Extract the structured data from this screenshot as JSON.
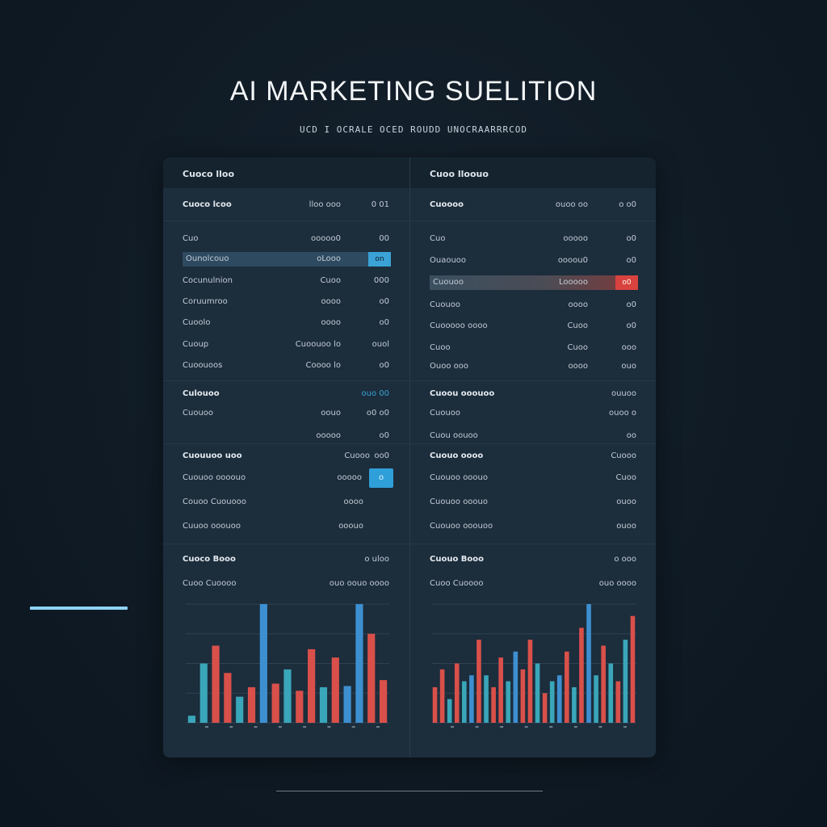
{
  "page": {
    "title": "AI MARKETING SUELITION",
    "subtitle": "UCD I OCRALE OCED ROUDD UNOCRAARRRCOD"
  },
  "left_panel": {
    "header": "Cuoco lloo",
    "rows": [
      {
        "label": "Cuoco lcoo",
        "value": "lloo  ooo",
        "small": "0  01"
      },
      {
        "label": "Cuo",
        "value": "ooooo0",
        "small": "00"
      },
      {
        "label": "Ounolcouo",
        "value": "oLooo",
        "small": "on",
        "highlight": "blue"
      },
      {
        "label": "Cocunulnion",
        "value": "Cuoo",
        "small": "000"
      },
      {
        "label": "Coruumroo",
        "value": "oooo",
        "small": "o0"
      },
      {
        "label": "Cuoolo",
        "value": "oooo",
        "small": "o0"
      },
      {
        "label": "Cuoup",
        "value": "Cuoouoo lo",
        "small": "ouol"
      },
      {
        "label": "Cuoouoos",
        "value": "Coooo lo",
        "small": "o0"
      }
    ],
    "section2": {
      "label": "Culouoo",
      "value": "ouo 00",
      "small": ""
    },
    "rows2": [
      {
        "label": "Cuouoo",
        "value": "oouo",
        "small": "o0 o0"
      },
      {
        "label": "",
        "value": "ooooo",
        "small": "o0"
      }
    ],
    "section3": {
      "label": "Cuouuoo uoo",
      "value": "Cuooo",
      "small": "oo0"
    },
    "rows3": [
      {
        "label": "Cuouoo oooouo",
        "value": "ooooo",
        "small": ""
      },
      {
        "label": "Couoo Cuouooo",
        "value": "oooo",
        "small": ""
      },
      {
        "label": "Cuuoo ooouoo",
        "value": "ooouo",
        "small": ""
      }
    ],
    "chart_header": {
      "label": "Cuoco Booo",
      "value": "o  uloo"
    },
    "chart_legend": {
      "label": "Cuoo  Cuoooo",
      "value": "ouo  oouo  oooo"
    },
    "button_label": "o"
  },
  "right_panel": {
    "header": "Cuoo lloouo",
    "rows": [
      {
        "label": "Cuoooo",
        "value": "ouoo  oo",
        "small": "o  o0"
      },
      {
        "label": "Cuo",
        "value": "ooooo",
        "small": "o0"
      },
      {
        "label": "Ouaouoo",
        "value": "oooou0",
        "small": "o0"
      },
      {
        "label": "Cuouoo",
        "value": "Looooo",
        "small": "o0",
        "highlight": "red"
      },
      {
        "label": "Cuouoo",
        "value": "oooo",
        "small": "o0"
      },
      {
        "label": "Cuooooo oooo",
        "value": "Cuoo",
        "small": "o0"
      },
      {
        "label": "Cuoo",
        "value": "Cuoo",
        "small": "ooo"
      },
      {
        "label": "Ouoo ooo",
        "value": "oooo",
        "small": "ouo"
      }
    ],
    "section2": {
      "label": "Cuoou ooouoo",
      "value": "",
      "small": "ouuoo"
    },
    "rows2": [
      {
        "label": "Cuouoo",
        "value": "",
        "small": "ouoo  o"
      },
      {
        "label": "Cuou oouoo",
        "value": "",
        "small": "oo"
      }
    ],
    "section3": {
      "label": "Cuouo oooo",
      "value": "",
      "small": "Cuooo"
    },
    "rows3": [
      {
        "label": "Cuouoo ooouo",
        "value": "",
        "small": "Cuoo"
      },
      {
        "label": "Cuouoo ooouo",
        "value": "",
        "small": "ouoo"
      },
      {
        "label": "Cuouoo ooouoo",
        "value": "",
        "small": "ouoo"
      }
    ],
    "chart_header": {
      "label": "Cuouo Booo",
      "value": "o  ooo"
    },
    "chart_legend": {
      "label": "Cuoo  Cuoooo",
      "value": "ouo  oooo"
    }
  },
  "colors": {
    "teal": "#3aa6b9",
    "blue": "#3d8fd0",
    "red": "#d9504a",
    "coral": "#e0634f",
    "green": "#4ea88f"
  },
  "chart_data": [
    {
      "type": "bar",
      "ylim": [
        0,
        100
      ],
      "grid": true,
      "values": [
        6,
        50,
        65,
        42,
        22,
        30,
        100,
        33,
        45,
        27,
        62,
        30,
        55,
        31,
        100,
        75,
        36
      ],
      "colors": [
        "teal",
        "teal",
        "red",
        "red",
        "teal",
        "red",
        "blue",
        "red",
        "teal",
        "red",
        "red",
        "teal",
        "red",
        "blue",
        "blue",
        "red",
        "red"
      ]
    },
    {
      "type": "bar",
      "ylim": [
        0,
        100
      ],
      "grid": true,
      "values": [
        30,
        45,
        20,
        50,
        35,
        40,
        70,
        40,
        30,
        55,
        35,
        60,
        45,
        70,
        50,
        25,
        35,
        40,
        60,
        30,
        80,
        100,
        40,
        65,
        50,
        35,
        70,
        90
      ],
      "colors": [
        "red",
        "red",
        "teal",
        "red",
        "teal",
        "blue",
        "red",
        "teal",
        "red",
        "red",
        "teal",
        "blue",
        "red",
        "red",
        "teal",
        "red",
        "teal",
        "blue",
        "red",
        "teal",
        "red",
        "blue",
        "teal",
        "red",
        "teal",
        "red",
        "teal",
        "red"
      ]
    }
  ]
}
